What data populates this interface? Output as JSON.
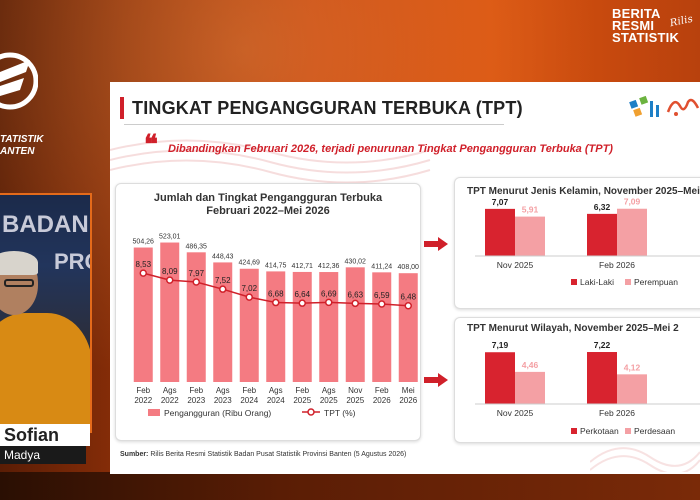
{
  "broadcast": {
    "brand_line1": "BERITA",
    "brand_line2": "RESMI",
    "brand_line3": "STATISTIK",
    "brand_script": "Rilis",
    "org_line1": "TATISTIK",
    "org_line2": "ANTEN",
    "bg_text_line1": "BADAN",
    "bg_text_line2": "PRO",
    "presenter_name": "Sofian",
    "presenter_title": "Madya"
  },
  "slide": {
    "title": "TINGKAT PENGANGGURAN TERBUKA (TPT)",
    "highlight": "Dibandingkan Februari 2026, terjadi penurunan Tingkat Pengangguran Terbuka (TPT)",
    "source_label": "Sumber:",
    "source_text": "Rilis Berita Resmi Statistik Badan Pusat Statistik Provinsi Banten (5 Agustus 2026)"
  },
  "chart_data": [
    {
      "type": "bar",
      "title": "Jumlah dan Tingkat Pengangguran Terbuka Februari 2022–Mei 2026",
      "title_line1": "Jumlah dan Tingkat Pengangguran Terbuka",
      "title_line2": "Februari 2022–Mei 2026",
      "categories": [
        [
          "Feb",
          "2022"
        ],
        [
          "Ags",
          "2022"
        ],
        [
          "Feb",
          "2023"
        ],
        [
          "Ags",
          "2023"
        ],
        [
          "Feb",
          "2024"
        ],
        [
          "Ags",
          "2024"
        ],
        [
          "Feb",
          "2025"
        ],
        [
          "Ags",
          "2025"
        ],
        [
          "Nov",
          "2025"
        ],
        [
          "Feb",
          "2026"
        ],
        [
          "Mei",
          "2026"
        ]
      ],
      "series": [
        {
          "name": "Pengangguran (Ribu Orang)",
          "type": "bar",
          "color": "#f47b82",
          "values": [
            504.26,
            523.01,
            486.35,
            448.43,
            424.69,
            414.75,
            412.71,
            412.36,
            430.02,
            411.24,
            408.0
          ],
          "labels": [
            "504,26",
            "523,01",
            "486,35",
            "448,43",
            "424,69",
            "414,75",
            "412,71",
            "412,36",
            "430,02",
            "411,24",
            "408,00"
          ]
        },
        {
          "name": "TPT (%)",
          "type": "line",
          "color": "#d0202a",
          "values": [
            8.53,
            8.09,
            7.97,
            7.52,
            7.02,
            6.68,
            6.64,
            6.69,
            6.63,
            6.59,
            6.48
          ],
          "labels": [
            "8,53",
            "8,09",
            "7,97",
            "7,52",
            "7,02",
            "6,68",
            "6,64",
            "6,69",
            "6,63",
            "6,59",
            "6,48"
          ]
        }
      ],
      "legend": "bottom",
      "grid": false
    },
    {
      "type": "bar",
      "title": "TPT Menurut Jenis Kelamin, November 2025–Mei",
      "categories": [
        "Nov 2025",
        "Feb 2026"
      ],
      "series": [
        {
          "name": "Laki-Laki",
          "color": "#d8232f",
          "values": [
            7.07,
            6.32
          ],
          "labels": [
            "7,07",
            "6,32"
          ]
        },
        {
          "name": "Perempuan",
          "color": "#f4a0a4",
          "values": [
            5.91,
            7.09
          ],
          "labels": [
            "5,91",
            "7,09"
          ]
        }
      ],
      "legend": "bottom"
    },
    {
      "type": "bar",
      "title": "TPT Menurut Wilayah, November 2025–Mei 2",
      "categories": [
        "Nov 2025",
        "Feb 2026"
      ],
      "series": [
        {
          "name": "Perkotaan",
          "color": "#d8232f",
          "values": [
            7.19,
            7.22
          ],
          "labels": [
            "7,19",
            "7,22"
          ]
        },
        {
          "name": "Perdesaan",
          "color": "#f4a0a4",
          "values": [
            4.46,
            4.12
          ],
          "labels": [
            "4,46",
            "4,12"
          ]
        }
      ],
      "legend": "bottom"
    }
  ],
  "colors": {
    "accent_red": "#d0202a",
    "bar_pink": "#f47b82",
    "light_pink": "#f4a0a4",
    "frame_orange": "#c2410c"
  },
  "icons": {
    "bps_logo": "bps-logo-icon",
    "arrow": "arrow-right-icon"
  }
}
